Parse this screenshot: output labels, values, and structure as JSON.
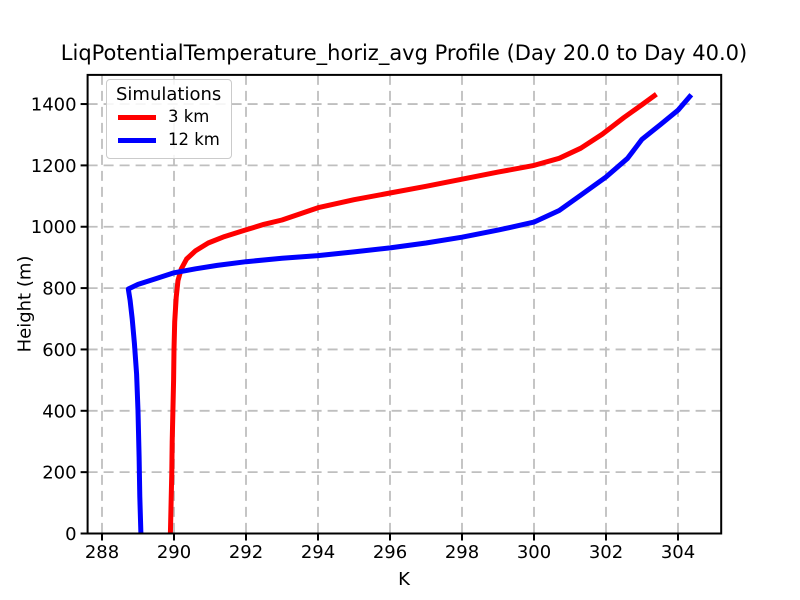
{
  "figure": {
    "background_color": "#ffffff"
  },
  "chart_data": {
    "type": "line",
    "title": "LiqPotentialTemperature_horiz_avg Profile (Day 20.0 to Day 40.0)",
    "xlabel": "K",
    "ylabel": "Height (m)",
    "xlim": [
      287.6,
      305.2
    ],
    "ylim": [
      0,
      1495
    ],
    "xticks": [
      288,
      290,
      292,
      294,
      296,
      298,
      300,
      302,
      304
    ],
    "yticks": [
      0,
      200,
      400,
      600,
      800,
      1000,
      1200,
      1400
    ],
    "grid": {
      "show": true,
      "line_style": "dashed",
      "color": "#bfbfbf"
    },
    "spine_color": "#000000",
    "legend": {
      "title": "Simulations",
      "location": "upper left",
      "border_color": "#cbcbcb"
    },
    "series": [
      {
        "name": "3 km",
        "color": "#ff0000",
        "points": [
          [
            289.9,
            0
          ],
          [
            289.92,
            100
          ],
          [
            289.94,
            200
          ],
          [
            289.95,
            300
          ],
          [
            289.97,
            400
          ],
          [
            289.99,
            500
          ],
          [
            290.0,
            600
          ],
          [
            290.02,
            690
          ],
          [
            290.06,
            770
          ],
          [
            290.11,
            825
          ],
          [
            290.2,
            862
          ],
          [
            290.35,
            895
          ],
          [
            290.6,
            922
          ],
          [
            290.95,
            947
          ],
          [
            291.4,
            968
          ],
          [
            291.95,
            988
          ],
          [
            292.5,
            1008
          ],
          [
            293.0,
            1022
          ],
          [
            293.5,
            1042
          ],
          [
            294.0,
            1062
          ],
          [
            295.0,
            1088
          ],
          [
            296.0,
            1110
          ],
          [
            297.0,
            1132
          ],
          [
            298.0,
            1155
          ],
          [
            299.0,
            1178
          ],
          [
            300.0,
            1200
          ],
          [
            300.7,
            1223
          ],
          [
            301.3,
            1256
          ],
          [
            301.9,
            1302
          ],
          [
            302.5,
            1356
          ],
          [
            303.0,
            1398
          ],
          [
            303.4,
            1432
          ]
        ]
      },
      {
        "name": "12 km",
        "color": "#0000ff",
        "points": [
          [
            289.08,
            0
          ],
          [
            289.05,
            120
          ],
          [
            289.03,
            250
          ],
          [
            289.0,
            400
          ],
          [
            288.96,
            520
          ],
          [
            288.9,
            620
          ],
          [
            288.84,
            700
          ],
          [
            288.78,
            760
          ],
          [
            288.73,
            797
          ],
          [
            289.0,
            812
          ],
          [
            289.5,
            831
          ],
          [
            290.0,
            850
          ],
          [
            290.6,
            863
          ],
          [
            291.2,
            874
          ],
          [
            292.0,
            886
          ],
          [
            293.0,
            897
          ],
          [
            294.0,
            906
          ],
          [
            295.0,
            918
          ],
          [
            296.0,
            931
          ],
          [
            297.0,
            947
          ],
          [
            298.0,
            966
          ],
          [
            299.0,
            989
          ],
          [
            300.0,
            1015
          ],
          [
            300.7,
            1053
          ],
          [
            301.3,
            1103
          ],
          [
            302.0,
            1162
          ],
          [
            302.6,
            1223
          ],
          [
            303.0,
            1285
          ],
          [
            303.5,
            1332
          ],
          [
            304.0,
            1380
          ],
          [
            304.37,
            1430
          ]
        ]
      }
    ]
  }
}
